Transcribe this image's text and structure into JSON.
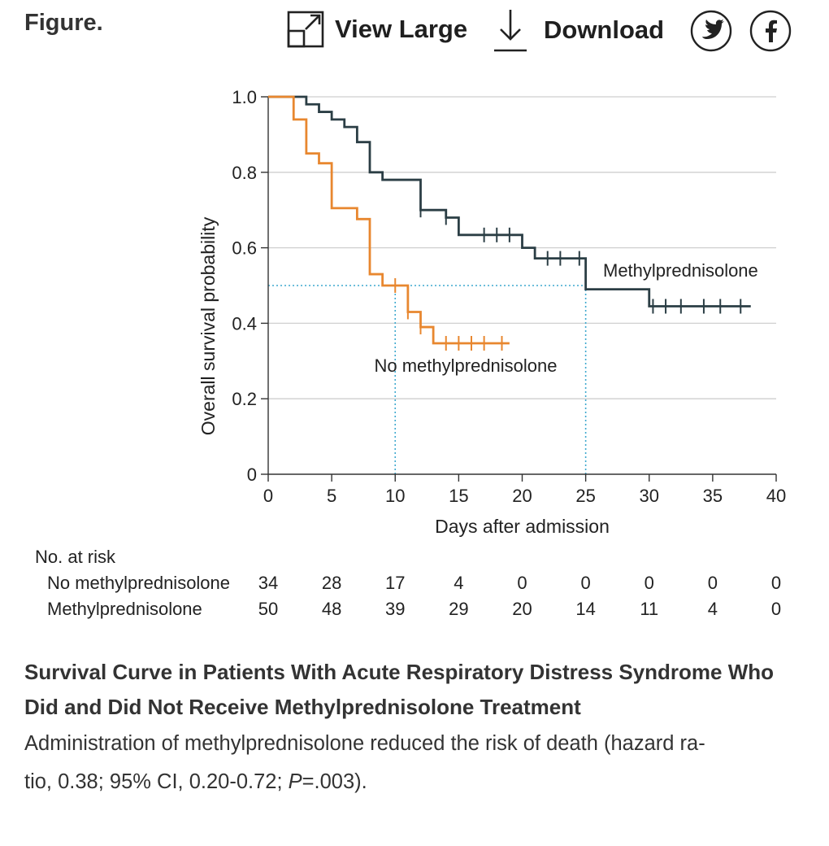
{
  "header": {
    "figure_label": "Figure.",
    "view_large_label": "View Large",
    "download_label": "Download",
    "view_large_icon": "expand-icon",
    "download_icon": "download-arrow-icon",
    "twitter_icon": "twitter-bird-icon",
    "facebook_icon": "facebook-f-icon"
  },
  "chart_data": {
    "type": "line",
    "subtype": "kaplan-meier",
    "title": "",
    "xlabel": "Days after admission",
    "ylabel": "Overall survival probability",
    "xlim": [
      0,
      40
    ],
    "ylim": [
      0,
      1.0
    ],
    "x_ticks": [
      0,
      5,
      10,
      15,
      20,
      25,
      30,
      35,
      40
    ],
    "x_tick_labels": [
      "0",
      "5",
      "10",
      "15",
      "20",
      "25",
      "30",
      "35",
      "40"
    ],
    "y_ticks": [
      0,
      0.2,
      0.4,
      0.6,
      0.8,
      1.0
    ],
    "y_tick_labels": [
      "0",
      "0.2",
      "0.4",
      "0.6",
      "0.8",
      "1.0"
    ],
    "grid": "horizontal",
    "median_reference": {
      "y": 0.5,
      "medians": [
        10,
        25
      ]
    },
    "series": [
      {
        "name": "Methylprednisolone",
        "color": "#2b3e45",
        "label_position": "right of curve, above",
        "steps": [
          [
            0,
            1.0
          ],
          [
            3,
            0.98
          ],
          [
            4,
            0.96
          ],
          [
            5,
            0.94
          ],
          [
            6,
            0.92
          ],
          [
            7,
            0.88
          ],
          [
            8,
            0.8
          ],
          [
            9,
            0.78
          ],
          [
            12,
            0.7
          ],
          [
            14,
            0.68
          ],
          [
            15,
            0.634
          ],
          [
            20,
            0.6
          ],
          [
            21,
            0.572
          ],
          [
            25,
            0.49
          ],
          [
            30,
            0.445
          ],
          [
            38,
            0.445
          ]
        ],
        "censored": [
          [
            12,
            0.7
          ],
          [
            14,
            0.68
          ],
          [
            17,
            0.634
          ],
          [
            18,
            0.634
          ],
          [
            19,
            0.634
          ],
          [
            22,
            0.572
          ],
          [
            23,
            0.572
          ],
          [
            24.5,
            0.572
          ],
          [
            30.3,
            0.445
          ],
          [
            31.3,
            0.445
          ],
          [
            32.5,
            0.445
          ],
          [
            34.3,
            0.445
          ],
          [
            35.6,
            0.445
          ],
          [
            37.2,
            0.445
          ]
        ]
      },
      {
        "name": "No methylprednisolone",
        "color": "#e8872f",
        "label_position": "below curve",
        "steps": [
          [
            0,
            1.0
          ],
          [
            2,
            0.94
          ],
          [
            3,
            0.85
          ],
          [
            4,
            0.824
          ],
          [
            5,
            0.705
          ],
          [
            7,
            0.676
          ],
          [
            8,
            0.53
          ],
          [
            9,
            0.5
          ],
          [
            11,
            0.43
          ],
          [
            12,
            0.39
          ],
          [
            13,
            0.347
          ],
          [
            19,
            0.347
          ]
        ],
        "censored": [
          [
            10,
            0.5
          ],
          [
            11,
            0.43
          ],
          [
            12,
            0.39
          ],
          [
            14,
            0.347
          ],
          [
            15,
            0.347
          ],
          [
            16,
            0.347
          ],
          [
            17,
            0.347
          ],
          [
            18.4,
            0.347
          ]
        ]
      }
    ],
    "risk_table": {
      "heading": "No. at risk",
      "times": [
        0,
        5,
        10,
        15,
        20,
        25,
        30,
        35,
        40
      ],
      "rows": [
        {
          "label": "No methylprednisolone",
          "values": [
            "34",
            "28",
            "17",
            "4",
            "0",
            "0",
            "0",
            "0",
            "0"
          ]
        },
        {
          "label": "Methylprednisolone",
          "values": [
            "50",
            "48",
            "39",
            "29",
            "20",
            "14",
            "11",
            "4",
            "0"
          ]
        }
      ]
    }
  },
  "caption": {
    "title": "Survival Curve in Patients With Acute Respiratory Distress Syndrome Who Did and Did Not Receive Methylprednisolone Treatment",
    "body_line1": "Administration of methylprednisolone reduced the risk of death (hazard ra-",
    "body_line2_before": "tio, 0.38; 95% CI, 0.20-0.72; ",
    "body_line2_italic": "P",
    "body_line2_after": "=.003)."
  }
}
